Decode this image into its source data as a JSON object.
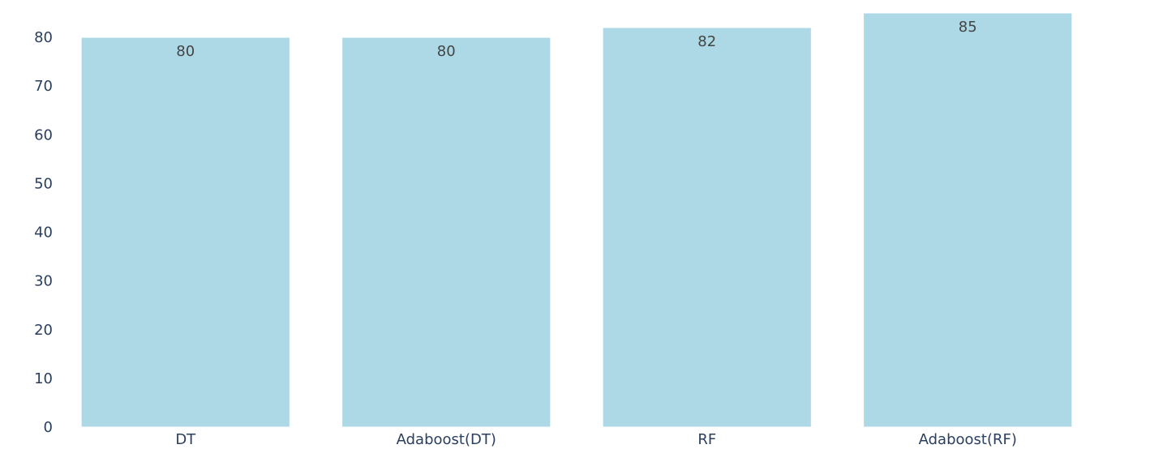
{
  "chart_data": {
    "type": "bar",
    "title": "",
    "xlabel": "",
    "ylabel": "",
    "categories": [
      "DT",
      "Adaboost(DT)",
      "RF",
      "Adaboost(RF)"
    ],
    "values": [
      80,
      80,
      82,
      85
    ],
    "data_labels": [
      "80",
      "80",
      "82",
      "85"
    ],
    "ylim": [
      0,
      85
    ],
    "yticks": [
      0,
      10,
      20,
      30,
      40,
      50,
      60,
      70,
      80
    ],
    "ytick_labels": [
      "0",
      "10",
      "20",
      "30",
      "40",
      "50",
      "60",
      "70",
      "80"
    ],
    "grid": false,
    "legend": "none",
    "bar_color": "#add8e6",
    "data_label_position": "inside-top"
  }
}
